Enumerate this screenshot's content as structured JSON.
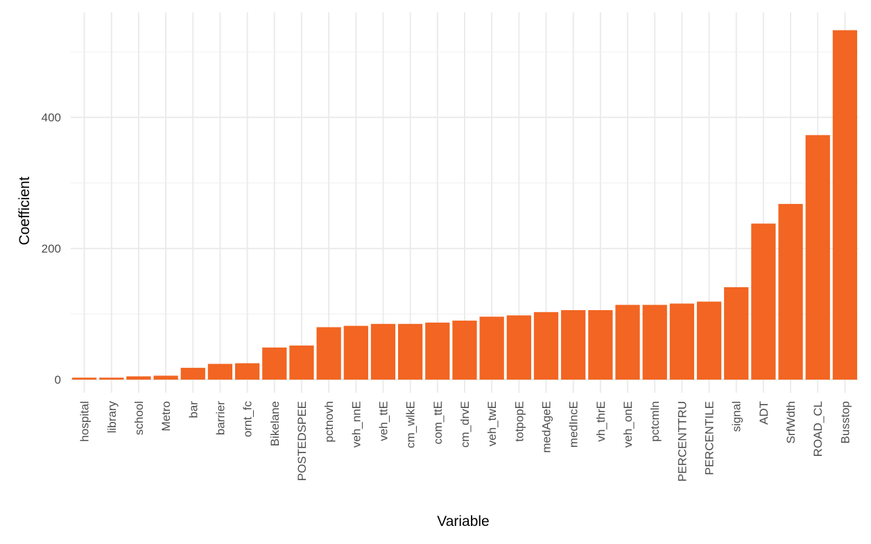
{
  "colors": {
    "bar": "#f26522",
    "background": "#ffffff"
  },
  "chart_data": {
    "type": "bar",
    "title": "",
    "xlabel": "Variable",
    "ylabel": "Coefficient",
    "categories": [
      "hospital",
      "library",
      "school",
      "Metro",
      "bar",
      "barrier",
      "ornt_fc",
      "Bikelane",
      "POSTEDSPEE",
      "pctnovh",
      "veh_nnE",
      "veh_ttE",
      "cm_wlkE",
      "com_ttE",
      "cm_drvE",
      "veh_twE",
      "totpopE",
      "medAgeE",
      "medIncE",
      "vh_thrE",
      "veh_onE",
      "pctcmln",
      "PERCENTTRU",
      "PERCENTILE",
      "signal",
      "ADT",
      "SrfWdth",
      "ROAD_CL",
      "Busstop"
    ],
    "values": [
      3,
      3,
      5,
      6,
      18,
      24,
      25,
      49,
      52,
      80,
      82,
      85,
      85,
      87,
      90,
      96,
      98,
      103,
      106,
      106,
      114,
      114,
      116,
      119,
      141,
      238,
      268,
      373,
      533
    ],
    "ylim": [
      -20,
      560
    ],
    "yticks": [
      0,
      200,
      400
    ],
    "yticklabels": [
      "0",
      "200",
      "400"
    ],
    "grid": true
  }
}
